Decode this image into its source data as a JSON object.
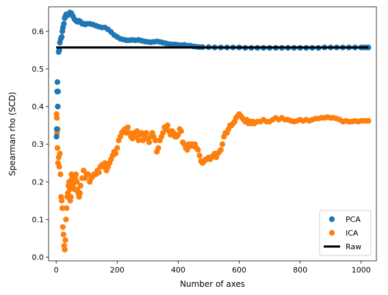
{
  "chart_data": {
    "type": "scatter",
    "title": "",
    "xlabel": "Number of axes",
    "ylabel": "Spearman rho (SCD)",
    "xlim": [
      -25,
      1050
    ],
    "ylim": [
      -0.01,
      0.665
    ],
    "x_ticks": [
      0,
      200,
      400,
      600,
      800,
      1000
    ],
    "y_ticks": [
      0.0,
      0.1,
      0.2,
      0.3,
      0.4,
      0.5,
      0.6
    ],
    "grid": false,
    "legend_position": "bottom-right",
    "series": [
      {
        "name": "PCA",
        "kind": "scatter",
        "color": "#1f77b4",
        "points": [
          [
            1,
            0.32
          ],
          [
            2,
            0.34
          ],
          [
            3,
            0.44
          ],
          [
            4,
            0.465
          ],
          [
            5,
            0.4
          ],
          [
            6,
            0.44
          ],
          [
            8,
            0.545
          ],
          [
            10,
            0.55
          ],
          [
            12,
            0.57
          ],
          [
            15,
            0.58
          ],
          [
            18,
            0.585
          ],
          [
            20,
            0.6
          ],
          [
            22,
            0.61
          ],
          [
            25,
            0.62
          ],
          [
            28,
            0.635
          ],
          [
            30,
            0.64
          ],
          [
            33,
            0.645
          ],
          [
            36,
            0.642
          ],
          [
            40,
            0.645
          ],
          [
            45,
            0.65
          ],
          [
            50,
            0.648
          ],
          [
            55,
            0.64
          ],
          [
            60,
            0.632
          ],
          [
            65,
            0.628
          ],
          [
            70,
            0.625
          ],
          [
            75,
            0.628
          ],
          [
            80,
            0.625
          ],
          [
            85,
            0.62
          ],
          [
            90,
            0.62
          ],
          [
            95,
            0.618
          ],
          [
            100,
            0.62
          ],
          [
            110,
            0.62
          ],
          [
            120,
            0.618
          ],
          [
            130,
            0.615
          ],
          [
            140,
            0.612
          ],
          [
            150,
            0.61
          ],
          [
            160,
            0.61
          ],
          [
            170,
            0.605
          ],
          [
            180,
            0.598
          ],
          [
            190,
            0.59
          ],
          [
            200,
            0.585
          ],
          [
            210,
            0.58
          ],
          [
            220,
            0.578
          ],
          [
            230,
            0.576
          ],
          [
            240,
            0.576
          ],
          [
            250,
            0.577
          ],
          [
            260,
            0.576
          ],
          [
            270,
            0.577
          ],
          [
            280,
            0.575
          ],
          [
            290,
            0.573
          ],
          [
            300,
            0.572
          ],
          [
            310,
            0.571
          ],
          [
            320,
            0.572
          ],
          [
            330,
            0.573
          ],
          [
            340,
            0.572
          ],
          [
            350,
            0.57
          ],
          [
            360,
            0.568
          ],
          [
            370,
            0.566
          ],
          [
            380,
            0.565
          ],
          [
            390,
            0.565
          ],
          [
            400,
            0.564
          ],
          [
            410,
            0.563
          ],
          [
            420,
            0.564
          ],
          [
            430,
            0.562
          ],
          [
            440,
            0.562
          ],
          [
            450,
            0.56
          ],
          [
            460,
            0.559
          ],
          [
            470,
            0.558
          ],
          [
            480,
            0.558
          ],
          [
            500,
            0.558
          ],
          [
            520,
            0.557
          ],
          [
            540,
            0.557
          ],
          [
            560,
            0.557
          ],
          [
            580,
            0.557
          ],
          [
            600,
            0.557
          ],
          [
            620,
            0.556
          ],
          [
            640,
            0.556
          ],
          [
            660,
            0.556
          ],
          [
            680,
            0.556
          ],
          [
            700,
            0.556
          ],
          [
            720,
            0.556
          ],
          [
            740,
            0.556
          ],
          [
            760,
            0.556
          ],
          [
            780,
            0.556
          ],
          [
            800,
            0.556
          ],
          [
            820,
            0.556
          ],
          [
            840,
            0.556
          ],
          [
            860,
            0.556
          ],
          [
            880,
            0.557
          ],
          [
            900,
            0.557
          ],
          [
            920,
            0.557
          ],
          [
            940,
            0.557
          ],
          [
            960,
            0.557
          ],
          [
            980,
            0.557
          ],
          [
            1000,
            0.557
          ],
          [
            1010,
            0.557
          ],
          [
            1020,
            0.557
          ],
          [
            1024,
            0.557
          ]
        ]
      },
      {
        "name": "ICA",
        "kind": "scatter",
        "color": "#ff7f0e",
        "points": [
          [
            1,
            0.38
          ],
          [
            2,
            0.37
          ],
          [
            3,
            0.33
          ],
          [
            4,
            0.29
          ],
          [
            5,
            0.34
          ],
          [
            6,
            0.25
          ],
          [
            8,
            0.265
          ],
          [
            10,
            0.24
          ],
          [
            12,
            0.275
          ],
          [
            14,
            0.22
          ],
          [
            16,
            0.16
          ],
          [
            18,
            0.15
          ],
          [
            20,
            0.13
          ],
          [
            22,
            0.08
          ],
          [
            24,
            0.06
          ],
          [
            26,
            0.03
          ],
          [
            28,
            0.02
          ],
          [
            30,
            0.045
          ],
          [
            32,
            0.1
          ],
          [
            34,
            0.13
          ],
          [
            36,
            0.16
          ],
          [
            38,
            0.17
          ],
          [
            40,
            0.19
          ],
          [
            42,
            0.2
          ],
          [
            44,
            0.18
          ],
          [
            46,
            0.15
          ],
          [
            48,
            0.16
          ],
          [
            50,
            0.22
          ],
          [
            52,
            0.21
          ],
          [
            55,
            0.19
          ],
          [
            58,
            0.2
          ],
          [
            60,
            0.18
          ],
          [
            62,
            0.21
          ],
          [
            65,
            0.22
          ],
          [
            68,
            0.2
          ],
          [
            70,
            0.18
          ],
          [
            72,
            0.17
          ],
          [
            75,
            0.16
          ],
          [
            78,
            0.17
          ],
          [
            80,
            0.19
          ],
          [
            85,
            0.21
          ],
          [
            90,
            0.23
          ],
          [
            95,
            0.21
          ],
          [
            100,
            0.22
          ],
          [
            105,
            0.22
          ],
          [
            110,
            0.2
          ],
          [
            115,
            0.21
          ],
          [
            120,
            0.215
          ],
          [
            125,
            0.22
          ],
          [
            130,
            0.22
          ],
          [
            135,
            0.23
          ],
          [
            140,
            0.225
          ],
          [
            145,
            0.24
          ],
          [
            150,
            0.245
          ],
          [
            155,
            0.24
          ],
          [
            160,
            0.25
          ],
          [
            165,
            0.23
          ],
          [
            170,
            0.24
          ],
          [
            175,
            0.25
          ],
          [
            180,
            0.26
          ],
          [
            185,
            0.27
          ],
          [
            190,
            0.28
          ],
          [
            195,
            0.275
          ],
          [
            200,
            0.29
          ],
          [
            205,
            0.31
          ],
          [
            210,
            0.32
          ],
          [
            215,
            0.33
          ],
          [
            220,
            0.335
          ],
          [
            225,
            0.34
          ],
          [
            230,
            0.33
          ],
          [
            235,
            0.345
          ],
          [
            240,
            0.33
          ],
          [
            245,
            0.32
          ],
          [
            250,
            0.315
          ],
          [
            255,
            0.33
          ],
          [
            260,
            0.32
          ],
          [
            265,
            0.335
          ],
          [
            270,
            0.31
          ],
          [
            275,
            0.325
          ],
          [
            280,
            0.33
          ],
          [
            285,
            0.31
          ],
          [
            290,
            0.32
          ],
          [
            295,
            0.33
          ],
          [
            300,
            0.315
          ],
          [
            305,
            0.305
          ],
          [
            310,
            0.32
          ],
          [
            315,
            0.33
          ],
          [
            320,
            0.32
          ],
          [
            325,
            0.31
          ],
          [
            330,
            0.28
          ],
          [
            335,
            0.29
          ],
          [
            340,
            0.31
          ],
          [
            345,
            0.32
          ],
          [
            350,
            0.33
          ],
          [
            355,
            0.345
          ],
          [
            360,
            0.34
          ],
          [
            365,
            0.35
          ],
          [
            370,
            0.335
          ],
          [
            375,
            0.325
          ],
          [
            380,
            0.335
          ],
          [
            385,
            0.33
          ],
          [
            390,
            0.32
          ],
          [
            395,
            0.32
          ],
          [
            400,
            0.325
          ],
          [
            405,
            0.34
          ],
          [
            410,
            0.335
          ],
          [
            415,
            0.305
          ],
          [
            420,
            0.3
          ],
          [
            425,
            0.29
          ],
          [
            430,
            0.285
          ],
          [
            435,
            0.3
          ],
          [
            440,
            0.295
          ],
          [
            445,
            0.3
          ],
          [
            450,
            0.295
          ],
          [
            455,
            0.3
          ],
          [
            460,
            0.29
          ],
          [
            465,
            0.285
          ],
          [
            470,
            0.27
          ],
          [
            475,
            0.255
          ],
          [
            480,
            0.25
          ],
          [
            485,
            0.255
          ],
          [
            490,
            0.26
          ],
          [
            495,
            0.26
          ],
          [
            500,
            0.265
          ],
          [
            505,
            0.26
          ],
          [
            510,
            0.265
          ],
          [
            515,
            0.27
          ],
          [
            520,
            0.275
          ],
          [
            525,
            0.265
          ],
          [
            530,
            0.275
          ],
          [
            535,
            0.28
          ],
          [
            540,
            0.285
          ],
          [
            545,
            0.3
          ],
          [
            550,
            0.32
          ],
          [
            555,
            0.33
          ],
          [
            560,
            0.33
          ],
          [
            565,
            0.34
          ],
          [
            570,
            0.35
          ],
          [
            575,
            0.35
          ],
          [
            580,
            0.355
          ],
          [
            585,
            0.36
          ],
          [
            590,
            0.37
          ],
          [
            595,
            0.375
          ],
          [
            600,
            0.38
          ],
          [
            605,
            0.375
          ],
          [
            610,
            0.37
          ],
          [
            615,
            0.365
          ],
          [
            620,
            0.36
          ],
          [
            625,
            0.365
          ],
          [
            630,
            0.355
          ],
          [
            635,
            0.36
          ],
          [
            640,
            0.355
          ],
          [
            645,
            0.36
          ],
          [
            650,
            0.355
          ],
          [
            660,
            0.36
          ],
          [
            670,
            0.36
          ],
          [
            680,
            0.365
          ],
          [
            690,
            0.36
          ],
          [
            700,
            0.36
          ],
          [
            710,
            0.365
          ],
          [
            720,
            0.37
          ],
          [
            730,
            0.365
          ],
          [
            740,
            0.37
          ],
          [
            750,
            0.365
          ],
          [
            760,
            0.365
          ],
          [
            770,
            0.362
          ],
          [
            780,
            0.36
          ],
          [
            790,
            0.362
          ],
          [
            800,
            0.365
          ],
          [
            810,
            0.362
          ],
          [
            820,
            0.365
          ],
          [
            830,
            0.362
          ],
          [
            840,
            0.365
          ],
          [
            850,
            0.368
          ],
          [
            860,
            0.368
          ],
          [
            870,
            0.37
          ],
          [
            880,
            0.37
          ],
          [
            890,
            0.372
          ],
          [
            900,
            0.37
          ],
          [
            910,
            0.37
          ],
          [
            920,
            0.368
          ],
          [
            930,
            0.365
          ],
          [
            940,
            0.36
          ],
          [
            950,
            0.362
          ],
          [
            960,
            0.36
          ],
          [
            970,
            0.36
          ],
          [
            980,
            0.362
          ],
          [
            990,
            0.36
          ],
          [
            1000,
            0.362
          ],
          [
            1010,
            0.362
          ],
          [
            1020,
            0.362
          ],
          [
            1024,
            0.362
          ]
        ]
      },
      {
        "name": "Raw",
        "kind": "line",
        "color": "#000000",
        "x": [
          0,
          1024
        ],
        "y": [
          0.557,
          0.557
        ]
      }
    ]
  }
}
